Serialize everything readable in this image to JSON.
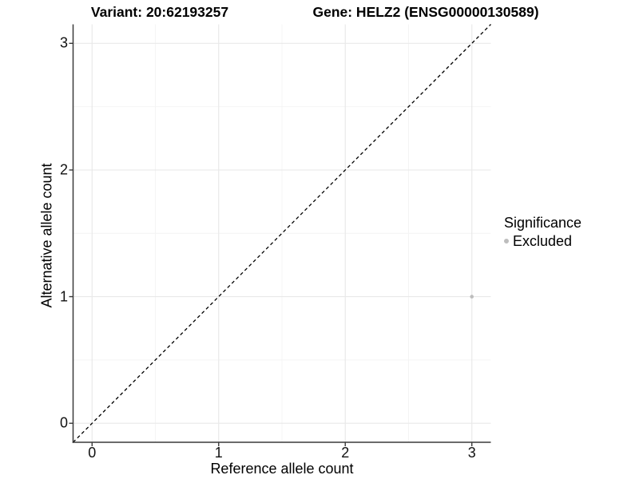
{
  "header": {
    "variant_title": "Variant: 20:62193257",
    "gene_title": "Gene: HELZ2 (ENSG00000130589)"
  },
  "legend": {
    "title": "Significance",
    "position": "right",
    "items": [
      {
        "label": "Excluded",
        "color": "#bdbdbd"
      }
    ]
  },
  "chart_data": {
    "type": "scatter",
    "title": "Variant: 20:62193257   Gene: HELZ2 (ENSG00000130589)",
    "xlabel": "Reference allele count",
    "ylabel": "Alternative allele count",
    "xlim": [
      -0.15,
      3.15
    ],
    "ylim": [
      -0.15,
      3.15
    ],
    "x_ticks": [
      0,
      1,
      2,
      3
    ],
    "y_ticks": [
      0,
      1,
      2,
      3
    ],
    "x_minor_ticks": [
      0.5,
      1.5,
      2.5
    ],
    "y_minor_ticks": [
      0.5,
      1.5,
      2.5
    ],
    "grid": true,
    "legend_position": "right",
    "series": [
      {
        "name": "Excluded",
        "color": "#bdbdbd",
        "points": [
          {
            "x": 3,
            "y": 1
          }
        ]
      }
    ],
    "reference_line": {
      "type": "identity (y = x)",
      "style": "dashed",
      "color": "#000000"
    }
  },
  "colors": {
    "background": "#ffffff",
    "major_grid": "#e9e9e9",
    "minor_grid": "#f4f4f4",
    "axis_line": "#3a3a3a",
    "tick_text": "#111111",
    "point": "#bdbdbd"
  }
}
